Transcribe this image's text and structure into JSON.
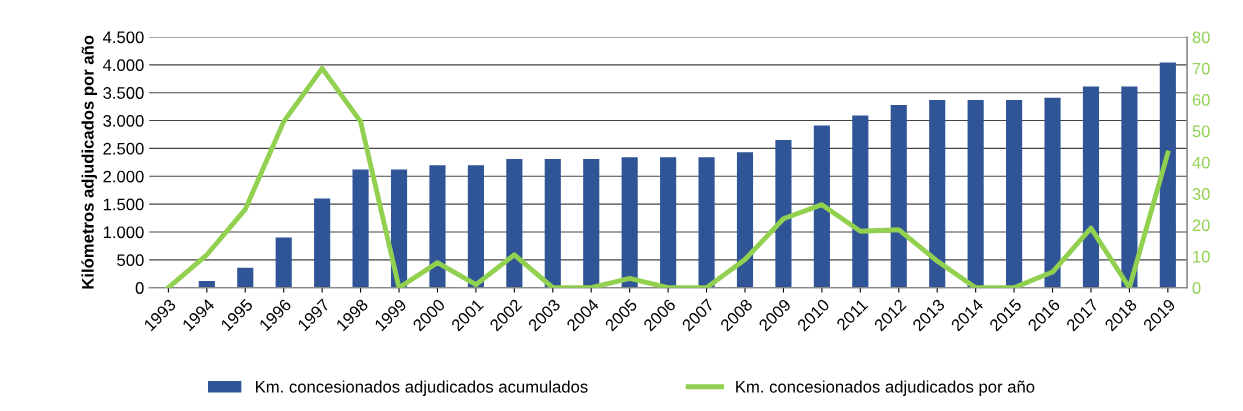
{
  "chart_data": {
    "type": "bar",
    "ylabel": "Kilómetros adjudicados por año",
    "categories": [
      "1993",
      "1994",
      "1995",
      "1996",
      "1997",
      "1998",
      "1999",
      "2000",
      "2001",
      "2002",
      "2003",
      "2004",
      "2005",
      "2006",
      "2007",
      "2008",
      "2009",
      "2010",
      "2011",
      "2012",
      "2013",
      "2014",
      "2015",
      "2016",
      "2017",
      "2018",
      "2019"
    ],
    "series": [
      {
        "name": "Km. concesionados adjudicados acumulados",
        "color": "#2f5597",
        "values": [
          10,
          120,
          360,
          900,
          1600,
          2120,
          2120,
          2200,
          2200,
          2310,
          2310,
          2310,
          2340,
          2340,
          2340,
          2430,
          2650,
          2910,
          3090,
          3280,
          3370,
          3370,
          3370,
          3410,
          3610,
          3610,
          4040
        ]
      },
      {
        "name": "Km. concesionados adjudicados por año",
        "type": "line",
        "axis": "y2",
        "color": "#92d050",
        "values": [
          0,
          10.5,
          25,
          53,
          70,
          53,
          0,
          8,
          1,
          10.5,
          0,
          0,
          3,
          0,
          0,
          9,
          22,
          26.5,
          18,
          18.5,
          8.5,
          0,
          0,
          5,
          19,
          0,
          43
        ]
      }
    ],
    "ylim": [
      0,
      4500
    ],
    "yticks": [
      0,
      500,
      {
        "value": 1000,
        "label": "1.000"
      },
      {
        "value": 1500,
        "label": "1.500"
      },
      {
        "value": 2000,
        "label": "2.000"
      },
      {
        "value": 2500,
        "label": "2.500"
      },
      {
        "value": 3000,
        "label": "3.000"
      },
      {
        "value": 3500,
        "label": "3.500"
      },
      {
        "value": 4000,
        "label": "4.000"
      },
      {
        "value": 4500,
        "label": "4.500"
      }
    ],
    "y2lim": [
      0,
      80
    ],
    "y2ticks": [
      0,
      10,
      20,
      30,
      40,
      50,
      60,
      70,
      80
    ],
    "grid": "y",
    "legend": "bottom",
    "marker": "none",
    "line_style": "solid"
  }
}
